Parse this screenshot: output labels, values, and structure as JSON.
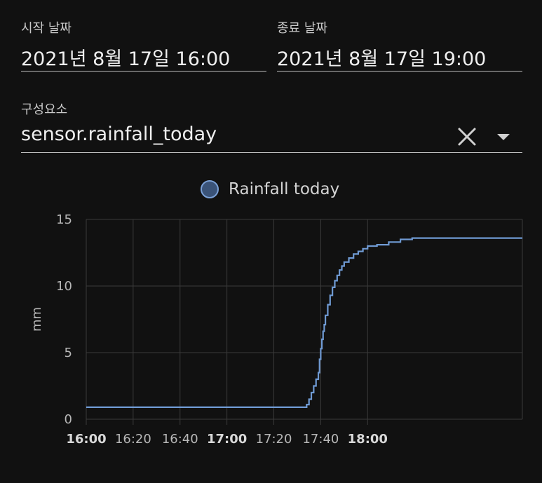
{
  "start": {
    "label": "시작 날짜",
    "value": "2021년 8월 17일 16:00"
  },
  "end": {
    "label": "종료 날짜",
    "value": "2021년 8월 17일 19:00"
  },
  "entity": {
    "label": "구성요소",
    "value": "sensor.rainfall_today",
    "clear_icon": "close-icon",
    "dropdown_icon": "caret-down-icon"
  },
  "colors": {
    "background": "#111111",
    "line": "#6f9ad3",
    "grid": "#3a3a3a",
    "legend_fill": "#3a5378"
  },
  "chart_data": {
    "type": "line",
    "step": true,
    "legend": [
      "Rainfall today"
    ],
    "ylabel": "mm",
    "ylim": [
      0,
      15
    ],
    "yticks": [
      "0",
      "5",
      "10",
      "15"
    ],
    "xlim_minutes": [
      0,
      186
    ],
    "xticks": [
      {
        "label": "16:00",
        "minute": 0,
        "bold": true
      },
      {
        "label": "16:20",
        "minute": 20,
        "bold": false
      },
      {
        "label": "16:40",
        "minute": 40,
        "bold": false
      },
      {
        "label": "17:00",
        "minute": 60,
        "bold": true
      },
      {
        "label": "17:20",
        "minute": 80,
        "bold": false
      },
      {
        "label": "17:40",
        "minute": 100,
        "bold": false
      },
      {
        "label": "18:00",
        "minute": 120,
        "bold": true
      }
    ],
    "grid": true,
    "series": [
      {
        "name": "Rainfall today",
        "x": [
          "16:00",
          "17:34",
          "17:35",
          "17:36",
          "17:37",
          "17:38",
          "17:39",
          "17:39.5",
          "17:40",
          "17:40.5",
          "17:41",
          "17:41.5",
          "17:42",
          "17:43",
          "17:44",
          "17:45",
          "17:46",
          "17:47",
          "17:48",
          "17:49",
          "17:50",
          "17:52",
          "17:54",
          "17:56",
          "17:58",
          "18:00",
          "18:04",
          "18:09",
          "18:14",
          "18:19",
          "18:26"
        ],
        "y": [
          0.9,
          1.1,
          1.5,
          2.0,
          2.5,
          3.0,
          3.5,
          4.5,
          5.3,
          6.0,
          6.6,
          7.1,
          7.8,
          8.6,
          9.3,
          9.9,
          10.4,
          10.8,
          11.2,
          11.5,
          11.8,
          12.1,
          12.4,
          12.6,
          12.8,
          13.0,
          13.1,
          13.3,
          13.5,
          13.6,
          13.6
        ]
      }
    ]
  }
}
